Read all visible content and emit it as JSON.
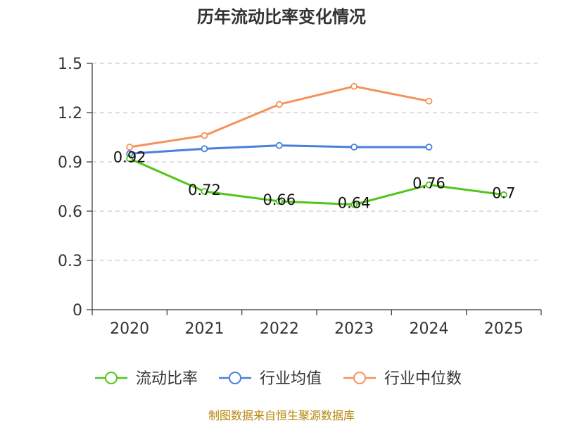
{
  "chart_data": {
    "type": "line",
    "title": "历年流动比率变化情况",
    "categories": [
      "2020",
      "2021",
      "2022",
      "2023",
      "2024",
      "2025"
    ],
    "y_ticks": [
      "0",
      "0.3",
      "0.6",
      "0.9",
      "1.2",
      "1.5"
    ],
    "ylim": [
      0,
      1.5
    ],
    "grid": true,
    "legend_position": "bottom",
    "series": [
      {
        "name": "流动比率",
        "color": "#52c41a",
        "values": [
          0.92,
          0.72,
          0.66,
          0.64,
          0.76,
          0.7
        ],
        "labels": [
          "0.92",
          "0.72",
          "0.66",
          "0.64",
          "0.76",
          "0.7"
        ]
      },
      {
        "name": "行业均值",
        "color": "#4a7fdb",
        "values": [
          0.95,
          0.98,
          1.0,
          0.99,
          0.99,
          null
        ]
      },
      {
        "name": "行业中位数",
        "color": "#f5915a",
        "values": [
          0.99,
          1.06,
          1.25,
          1.36,
          1.27,
          null
        ]
      }
    ]
  },
  "source": "制图数据来自恒生聚源数据库"
}
